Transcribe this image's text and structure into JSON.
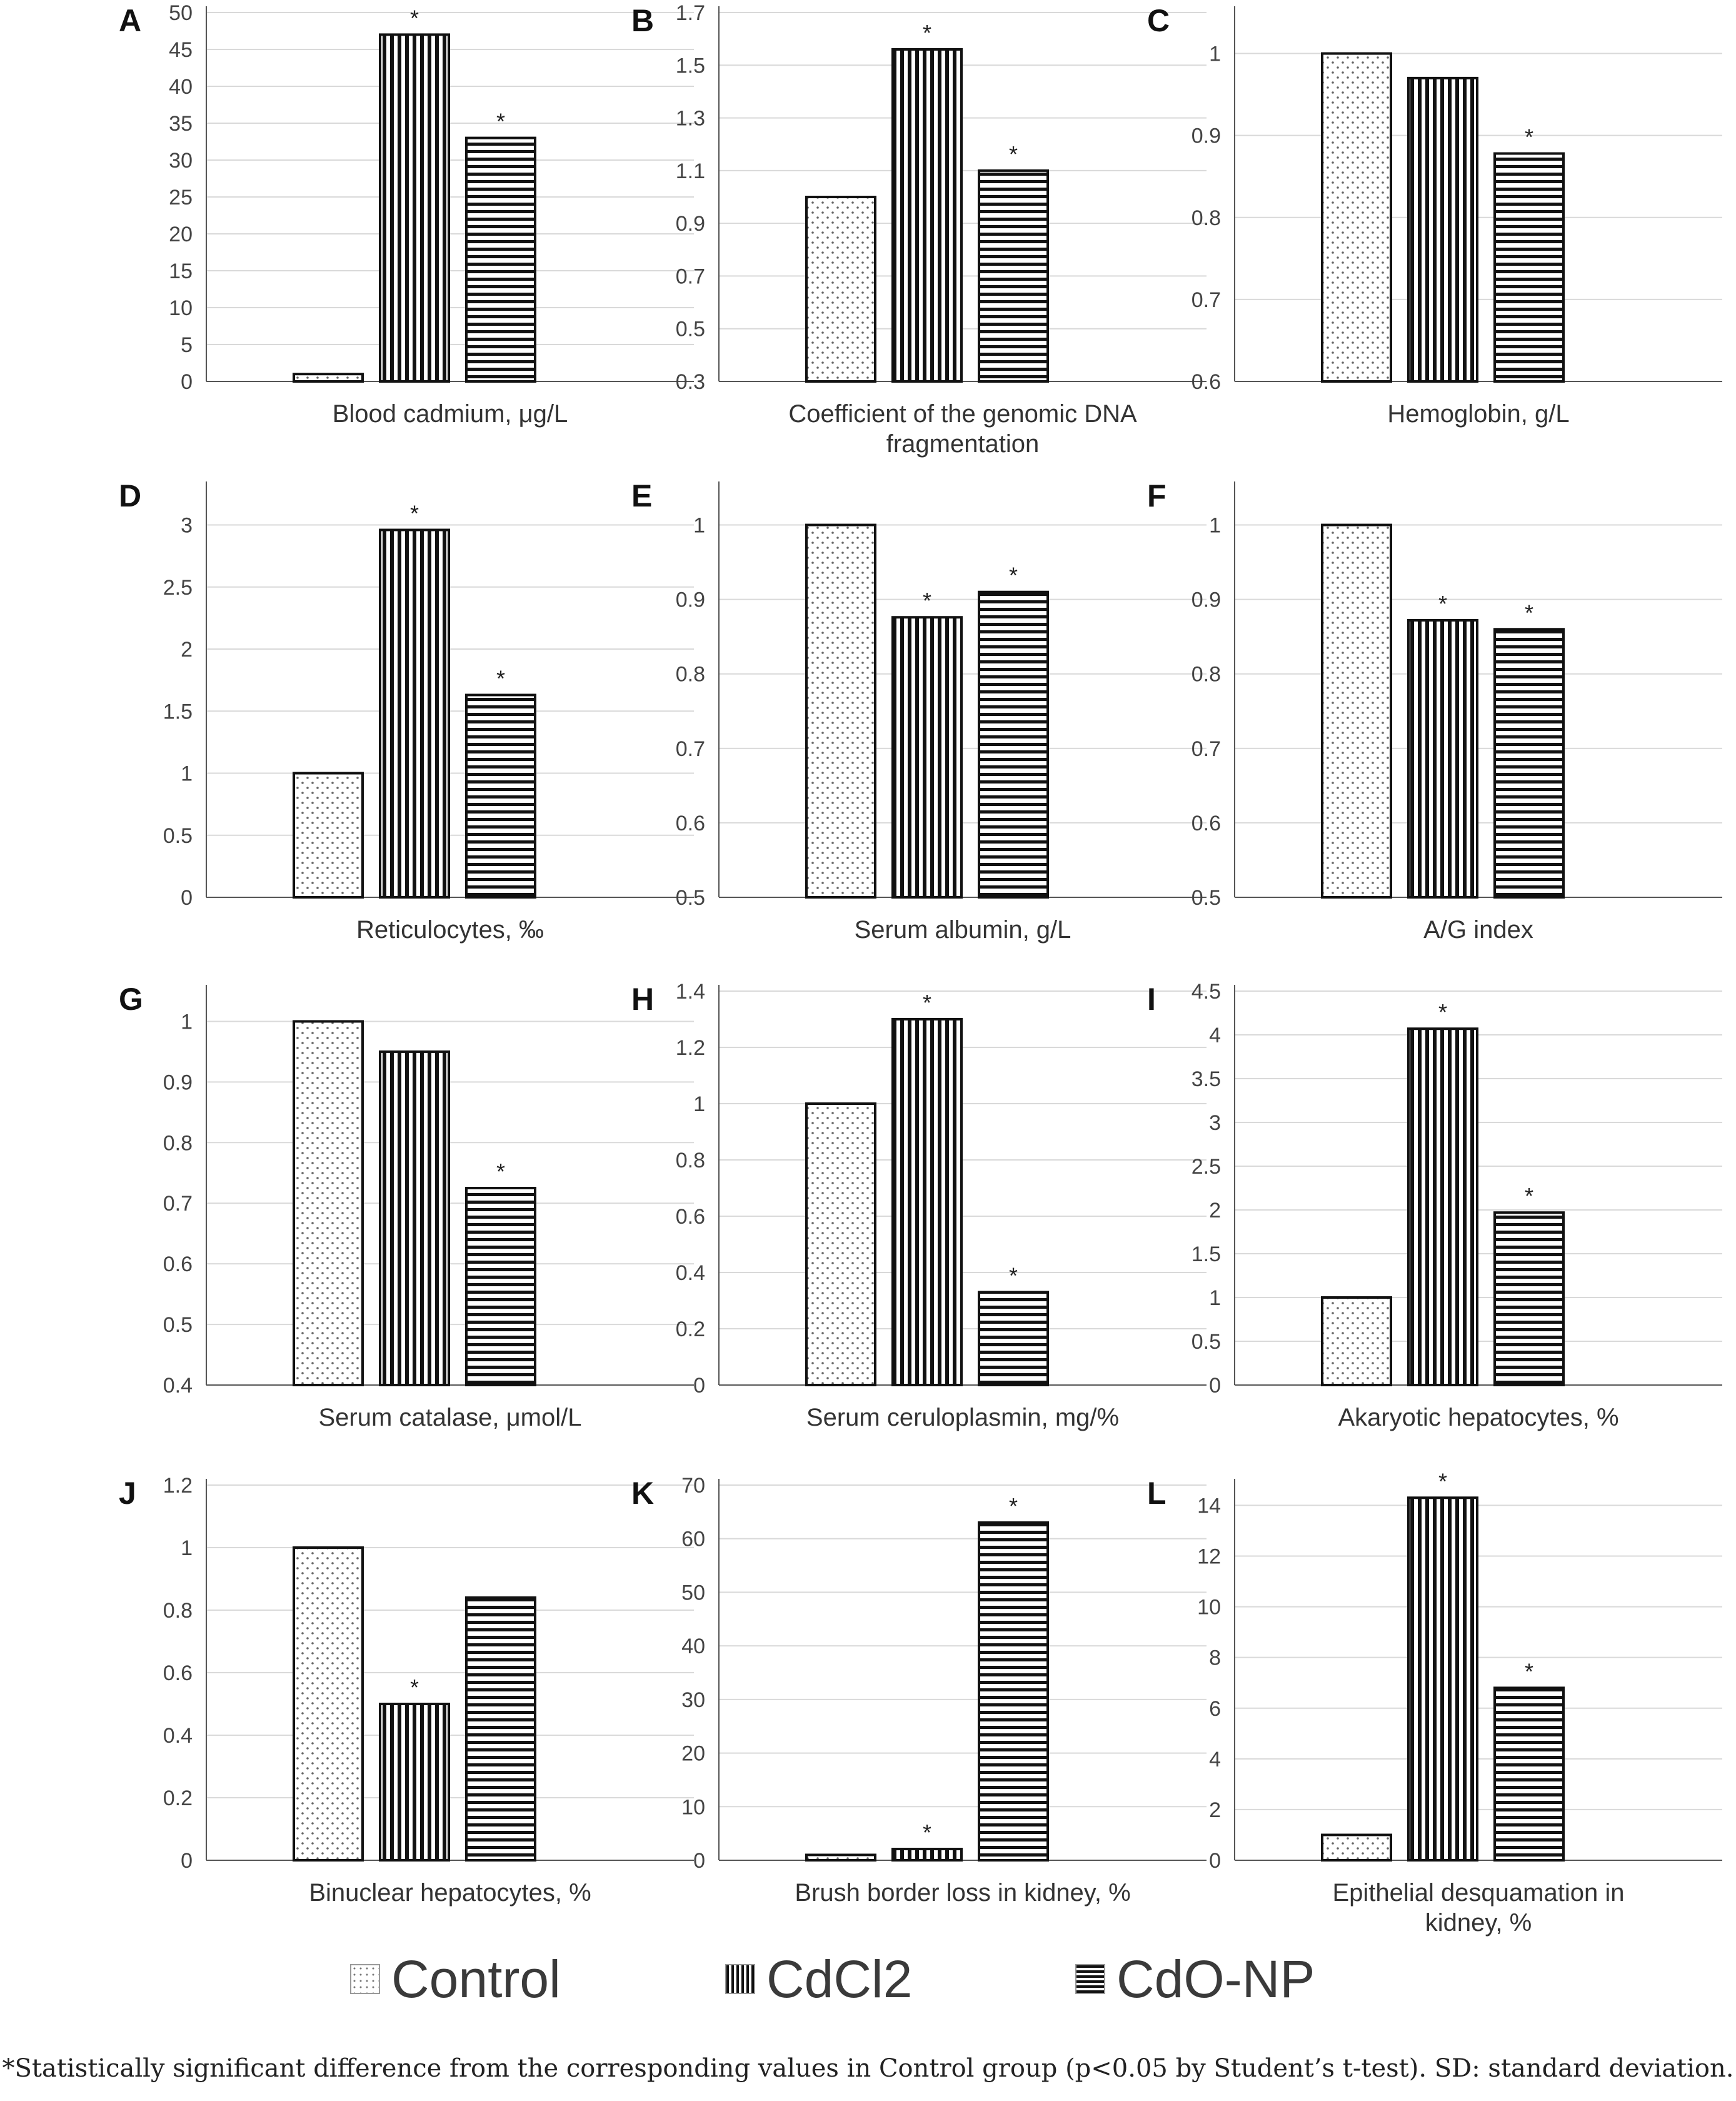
{
  "series_names": [
    "Control",
    "CdCl2",
    "CdO-NP"
  ],
  "legend": [
    {
      "label": "Control",
      "pattern": "dots"
    },
    {
      "label": "CdCl2",
      "pattern": "vertical"
    },
    {
      "label": "CdO-NP",
      "pattern": "horizontal"
    }
  ],
  "footnote": "*Statistically significant difference from the corresponding values in Control group (p<0.05 by Student’s t-test). SD: standard deviation.",
  "chart_data": [
    {
      "panel": "A",
      "type": "bar",
      "xlabel": [
        "Blood cadmium, μg/L"
      ],
      "ylim": [
        0,
        50
      ],
      "ticks": [
        0,
        5,
        10,
        15,
        20,
        25,
        30,
        35,
        40,
        45,
        50
      ],
      "tick_labels": [
        "0",
        "5",
        "10",
        "15",
        "20",
        "25",
        "30",
        "35",
        "40",
        "45",
        "50"
      ],
      "values": [
        1,
        47,
        33
      ],
      "significant": [
        false,
        true,
        true
      ]
    },
    {
      "panel": "B",
      "type": "bar",
      "xlabel": [
        "Coefficient of the genomic DNA",
        "fragmentation"
      ],
      "ylim": [
        0.3,
        1.7
      ],
      "ticks": [
        0.3,
        0.5,
        0.7,
        0.9,
        1.1,
        1.3,
        1.5,
        1.7
      ],
      "tick_labels": [
        "0.3",
        "0.5",
        "0.7",
        "0.9",
        "1.1",
        "1.3",
        "1.5",
        "1.7"
      ],
      "values": [
        1,
        1.56,
        1.1
      ],
      "significant": [
        false,
        true,
        true
      ]
    },
    {
      "panel": "C",
      "type": "bar",
      "xlabel": [
        "Hemoglobin, g/L"
      ],
      "ylim": [
        0.6,
        1.05
      ],
      "ticks": [
        0.6,
        0.7,
        0.8,
        0.9,
        1
      ],
      "tick_labels": [
        "0.6",
        "0.7",
        "0.8",
        "0.9",
        "1"
      ],
      "values": [
        1,
        0.97,
        0.878
      ],
      "significant": [
        false,
        false,
        true
      ]
    },
    {
      "panel": "D",
      "type": "bar",
      "xlabel": [
        "Reticulocytes, ‰"
      ],
      "ylim": [
        0,
        3.3
      ],
      "ticks": [
        0,
        0.5,
        1,
        1.5,
        2,
        2.5,
        3
      ],
      "tick_labels": [
        "0",
        "0.5",
        "1",
        "1.5",
        "2",
        "2.5",
        "3"
      ],
      "values": [
        1,
        2.96,
        1.63
      ],
      "significant": [
        false,
        true,
        true
      ]
    },
    {
      "panel": "E",
      "type": "bar",
      "xlabel": [
        "Serum albumin, g/L"
      ],
      "ylim": [
        0.5,
        1.05
      ],
      "ticks": [
        0.5,
        0.6,
        0.7,
        0.8,
        0.9,
        1
      ],
      "tick_labels": [
        "0.5",
        "0.6",
        "0.7",
        "0.8",
        "0.9",
        "1"
      ],
      "values": [
        1,
        0.876,
        0.91
      ],
      "significant": [
        false,
        true,
        true
      ]
    },
    {
      "panel": "F",
      "type": "bar",
      "xlabel": [
        "A/G index"
      ],
      "ylim": [
        0.5,
        1.05
      ],
      "ticks": [
        0.5,
        0.6,
        0.7,
        0.8,
        0.9,
        1
      ],
      "tick_labels": [
        "0.5",
        "0.6",
        "0.7",
        "0.8",
        "0.9",
        "1"
      ],
      "values": [
        1,
        0.872,
        0.86
      ],
      "significant": [
        false,
        true,
        true
      ]
    },
    {
      "panel": "G",
      "type": "bar",
      "xlabel": [
        "Serum catalase, μmol/L"
      ],
      "ylim": [
        0.4,
        1.05
      ],
      "ticks": [
        0.4,
        0.5,
        0.6,
        0.7,
        0.8,
        0.9,
        1
      ],
      "tick_labels": [
        "0.4",
        "0.5",
        "0.6",
        "0.7",
        "0.8",
        "0.9",
        "1"
      ],
      "values": [
        1,
        0.95,
        0.725
      ],
      "significant": [
        false,
        false,
        true
      ]
    },
    {
      "panel": "H",
      "type": "bar",
      "xlabel": [
        "Serum ceruloplasmin, mg/%"
      ],
      "ylim": [
        0,
        1.4
      ],
      "ticks": [
        0,
        0.2,
        0.4,
        0.6,
        0.8,
        1,
        1.2,
        1.4
      ],
      "tick_labels": [
        "0",
        "0.2",
        "0.4",
        "0.6",
        "0.8",
        "1",
        "1.2",
        "1.4"
      ],
      "values": [
        1,
        1.3,
        0.33
      ],
      "significant": [
        false,
        true,
        true
      ]
    },
    {
      "panel": "I",
      "type": "bar",
      "xlabel": [
        "Akaryotic hepatocytes, %"
      ],
      "ylim": [
        0,
        4.5
      ],
      "ticks": [
        0,
        0.5,
        1,
        1.5,
        2,
        2.5,
        3,
        3.5,
        4,
        4.5
      ],
      "tick_labels": [
        "0",
        "0.5",
        "1",
        "1.5",
        "2",
        "2.5",
        "3",
        "3.5",
        "4",
        "4.5"
      ],
      "values": [
        1,
        4.07,
        1.97
      ],
      "significant": [
        false,
        true,
        true
      ]
    },
    {
      "panel": "J",
      "type": "bar",
      "xlabel": [
        "Binuclear hepatocytes, %"
      ],
      "ylim": [
        0,
        1.2
      ],
      "ticks": [
        0,
        0.2,
        0.4,
        0.6,
        0.8,
        1,
        1.2
      ],
      "tick_labels": [
        "0",
        "0.2",
        "0.4",
        "0.6",
        "0.8",
        "1",
        "1.2"
      ],
      "values": [
        1,
        0.5,
        0.84
      ],
      "significant": [
        false,
        true,
        false
      ]
    },
    {
      "panel": "K",
      "type": "bar",
      "xlabel": [
        "Brush border loss in kidney, %"
      ],
      "ylim": [
        0,
        70
      ],
      "ticks": [
        0,
        10,
        20,
        30,
        40,
        50,
        60,
        70
      ],
      "tick_labels": [
        "0",
        "10",
        "20",
        "30",
        "40",
        "50",
        "60",
        "70"
      ],
      "values": [
        1,
        2.1,
        63
      ],
      "significant": [
        false,
        true,
        true
      ]
    },
    {
      "panel": "L",
      "type": "bar",
      "xlabel": [
        "Epithelial desquamation in",
        "kidney, %"
      ],
      "ylim": [
        0,
        14.8
      ],
      "ticks": [
        0,
        2,
        4,
        6,
        8,
        10,
        12,
        14
      ],
      "tick_labels": [
        "0",
        "2",
        "4",
        "6",
        "8",
        "10",
        "12",
        "14"
      ],
      "values": [
        1,
        14.3,
        6.8
      ],
      "significant": [
        false,
        true,
        true
      ]
    }
  ]
}
